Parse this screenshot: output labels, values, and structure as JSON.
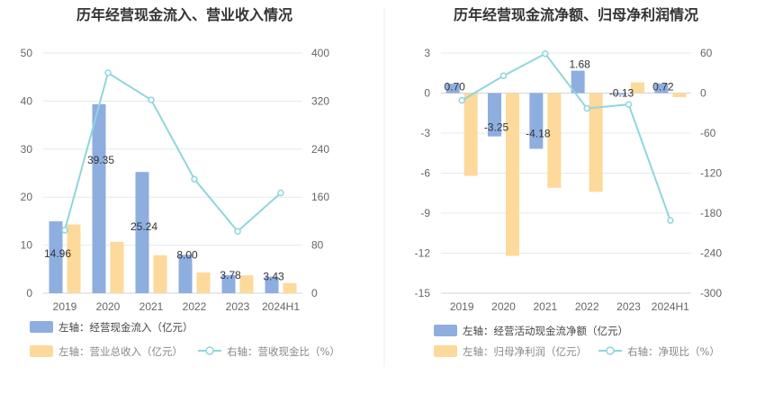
{
  "colors": {
    "blue": "#8eaee0",
    "orange": "#fdd99b",
    "line": "#8fd6dc"
  },
  "chart_data": [
    {
      "type": "bar",
      "title": "历年经营现金流入、营业收入情况",
      "categories": [
        "2019",
        "2020",
        "2021",
        "2022",
        "2023",
        "2024H1"
      ],
      "y_left_lim": [
        0,
        50
      ],
      "y_left_ticks": [
        "0",
        "10",
        "20",
        "30",
        "40",
        "50"
      ],
      "y_right_lim": [
        0,
        400
      ],
      "y_right_ticks": [
        "0",
        "80",
        "160",
        "240",
        "320",
        "400"
      ],
      "series": [
        {
          "name": "左轴：经营现金流入（亿元）",
          "type": "bar",
          "axis": "left",
          "values": [
            14.96,
            39.35,
            25.24,
            8.0,
            3.78,
            3.43
          ],
          "labels": [
            "14.96",
            "39.35",
            "25.24",
            "8.00",
            "3.78",
            "3.43"
          ]
        },
        {
          "name": "左轴：营业总收入（亿元）",
          "type": "bar",
          "axis": "left",
          "values": [
            14.3,
            10.7,
            7.9,
            4.3,
            3.7,
            2.1
          ]
        },
        {
          "name": "右轴：营收现金比（%）",
          "type": "line",
          "axis": "right",
          "values": [
            105,
            367,
            322,
            190,
            103,
            167
          ]
        }
      ],
      "legend": "bottom"
    },
    {
      "type": "bar",
      "title": "历年经营现金流净额、归母净利润情况",
      "categories": [
        "2019",
        "2020",
        "2021",
        "2022",
        "2023",
        "2024H1"
      ],
      "y_left_lim": [
        -15,
        3
      ],
      "y_left_ticks": [
        "3",
        "0",
        "-3",
        "-6",
        "-9",
        "-12",
        "-15"
      ],
      "y_right_lim": [
        -300,
        60
      ],
      "y_right_ticks": [
        "60",
        "0",
        "-60",
        "-120",
        "-180",
        "-240",
        "-300"
      ],
      "series": [
        {
          "name": "左轴：经营活动现金流净额（亿元）",
          "type": "bar",
          "axis": "left",
          "values": [
            0.7,
            -3.25,
            -4.18,
            1.68,
            -0.13,
            0.72
          ],
          "labels": [
            "0.70",
            "-3.25",
            "-4.18",
            "1.68",
            "-0.13",
            "0.72"
          ]
        },
        {
          "name": "左轴：归母净利润（亿元）",
          "type": "bar",
          "axis": "left",
          "values": [
            -6.2,
            -12.2,
            -7.1,
            -7.4,
            0.8,
            -0.3
          ]
        },
        {
          "name": "右轴：净现比（%）",
          "type": "line",
          "axis": "right",
          "values": [
            -11,
            26,
            59,
            -23,
            -17,
            -191
          ]
        }
      ],
      "legend": "bottom"
    }
  ]
}
